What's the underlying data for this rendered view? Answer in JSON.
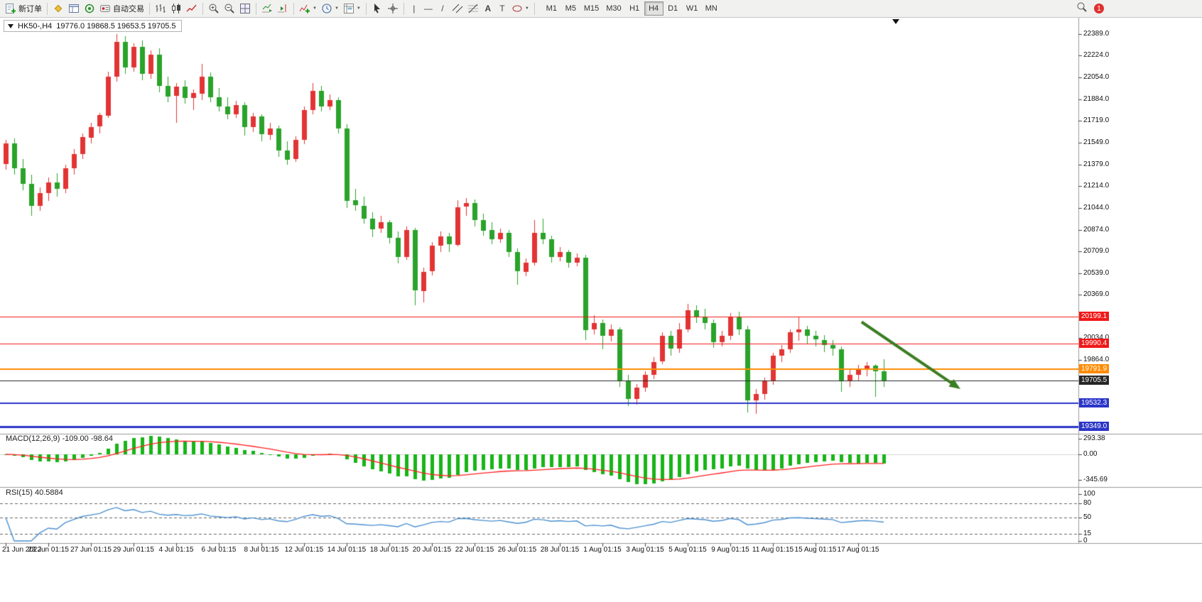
{
  "toolbar": {
    "new_order_label": "新订单",
    "autotrading_label": "自动交易",
    "timeframes": [
      "M1",
      "M5",
      "M15",
      "M30",
      "H1",
      "H4",
      "D1",
      "W1",
      "MN"
    ],
    "active_timeframe": "H4",
    "notification_count": "1"
  },
  "icons": {
    "caret": "▼",
    "vertical_line": "|",
    "horizontal_line": "—",
    "trendline": "/",
    "text_tool": "A",
    "label_tool": "T"
  },
  "chart": {
    "info": {
      "symbol_period": "HK50-,H4",
      "ohlc": "19776.0 19868.5 19653.5 19705.5"
    }
  },
  "chart_data": {
    "type": "candlestick",
    "symbol": "HK50-",
    "period": "H4",
    "ohlc_format": [
      "open",
      "high",
      "low",
      "close"
    ],
    "colors": {
      "up_color": "#e23434",
      "down_color": "#2aa32a",
      "background": "#ffffff"
    },
    "candles": [
      [
        21380,
        21570,
        21340,
        21540
      ],
      [
        21540,
        21580,
        21300,
        21350
      ],
      [
        21350,
        21420,
        21180,
        21230
      ],
      [
        21230,
        21300,
        20980,
        21060
      ],
      [
        21060,
        21200,
        21020,
        21160
      ],
      [
        21160,
        21280,
        21100,
        21240
      ],
      [
        21240,
        21310,
        21130,
        21190
      ],
      [
        21190,
        21380,
        21160,
        21350
      ],
      [
        21350,
        21500,
        21300,
        21460
      ],
      [
        21460,
        21620,
        21420,
        21590
      ],
      [
        21590,
        21700,
        21540,
        21670
      ],
      [
        21670,
        21780,
        21620,
        21760
      ],
      [
        21760,
        22100,
        21740,
        22060
      ],
      [
        22060,
        22389,
        22020,
        22330
      ],
      [
        22330,
        22370,
        22080,
        22130
      ],
      [
        22130,
        22320,
        22100,
        22290
      ],
      [
        22290,
        22340,
        22030,
        22080
      ],
      [
        22080,
        22260,
        22040,
        22230
      ],
      [
        22230,
        22280,
        21940,
        21990
      ],
      [
        21990,
        22060,
        21860,
        21910
      ],
      [
        21910,
        22010,
        21700,
        21980
      ],
      [
        21980,
        22030,
        21850,
        21890
      ],
      [
        21890,
        21960,
        21800,
        21930
      ],
      [
        21930,
        22160,
        21880,
        22060
      ],
      [
        22060,
        22090,
        21860,
        21900
      ],
      [
        21900,
        21970,
        21790,
        21830
      ],
      [
        21830,
        21900,
        21730,
        21770
      ],
      [
        21770,
        21870,
        21740,
        21840
      ],
      [
        21840,
        21860,
        21600,
        21670
      ],
      [
        21670,
        21780,
        21630,
        21750
      ],
      [
        21750,
        21770,
        21560,
        21610
      ],
      [
        21610,
        21700,
        21570,
        21660
      ],
      [
        21660,
        21680,
        21440,
        21490
      ],
      [
        21490,
        21560,
        21380,
        21420
      ],
      [
        21420,
        21600,
        21400,
        21570
      ],
      [
        21570,
        21830,
        21540,
        21800
      ],
      [
        21800,
        22010,
        21770,
        21950
      ],
      [
        21950,
        21990,
        21790,
        21830
      ],
      [
        21830,
        21920,
        21800,
        21880
      ],
      [
        21880,
        21900,
        21620,
        21660
      ],
      [
        21660,
        21690,
        21040,
        21100
      ],
      [
        21100,
        21190,
        21020,
        21060
      ],
      [
        21060,
        21130,
        20920,
        20960
      ],
      [
        20960,
        21010,
        20820,
        20880
      ],
      [
        20880,
        20980,
        20850,
        20930
      ],
      [
        20930,
        20950,
        20770,
        20810
      ],
      [
        20810,
        20860,
        20610,
        20660
      ],
      [
        20660,
        20900,
        20640,
        20870
      ],
      [
        20870,
        20890,
        20290,
        20400
      ],
      [
        20400,
        20580,
        20310,
        20550
      ],
      [
        20550,
        20780,
        20520,
        20750
      ],
      [
        20750,
        20860,
        20700,
        20820
      ],
      [
        20820,
        20850,
        20700,
        20760
      ],
      [
        20760,
        21100,
        20740,
        21050
      ],
      [
        21050,
        21120,
        20980,
        21080
      ],
      [
        21080,
        21110,
        20900,
        20950
      ],
      [
        20950,
        21000,
        20830,
        20870
      ],
      [
        20870,
        20930,
        20760,
        20800
      ],
      [
        20800,
        20880,
        20770,
        20850
      ],
      [
        20850,
        20870,
        20660,
        20700
      ],
      [
        20700,
        20730,
        20450,
        20550
      ],
      [
        20550,
        20650,
        20510,
        20620
      ],
      [
        20620,
        20950,
        20600,
        20850
      ],
      [
        20850,
        20960,
        20760,
        20800
      ],
      [
        20800,
        20830,
        20620,
        20660
      ],
      [
        20660,
        20740,
        20630,
        20700
      ],
      [
        20700,
        20720,
        20580,
        20620
      ],
      [
        20620,
        20690,
        20590,
        20660
      ],
      [
        20660,
        20680,
        20020,
        20100
      ],
      [
        20100,
        20210,
        20060,
        20150
      ],
      [
        20150,
        20180,
        19950,
        20050
      ],
      [
        20050,
        20140,
        20010,
        20100
      ],
      [
        20100,
        20120,
        19660,
        19700
      ],
      [
        19700,
        19750,
        19510,
        19560
      ],
      [
        19560,
        19680,
        19520,
        19650
      ],
      [
        19650,
        19780,
        19620,
        19750
      ],
      [
        19750,
        19890,
        19720,
        19850
      ],
      [
        19850,
        20080,
        19830,
        20050
      ],
      [
        20050,
        20090,
        19900,
        19950
      ],
      [
        19950,
        20150,
        19920,
        20100
      ],
      [
        20100,
        20300,
        20080,
        20250
      ],
      [
        20250,
        20290,
        20150,
        20200
      ],
      [
        20200,
        20260,
        20100,
        20150
      ],
      [
        20150,
        20180,
        19960,
        20000
      ],
      [
        20000,
        20090,
        19970,
        20050
      ],
      [
        20050,
        20230,
        20020,
        20200
      ],
      [
        20200,
        20240,
        20060,
        20100
      ],
      [
        20100,
        20130,
        19460,
        19550
      ],
      [
        19550,
        19640,
        19450,
        19600
      ],
      [
        19600,
        19730,
        19560,
        19700
      ],
      [
        19700,
        19920,
        19670,
        19900
      ],
      [
        19900,
        19980,
        19850,
        19950
      ],
      [
        19950,
        20100,
        19920,
        20080
      ],
      [
        20080,
        20199,
        20010,
        20100
      ],
      [
        20100,
        20130,
        19990,
        20050
      ],
      [
        20050,
        20090,
        19970,
        20020
      ],
      [
        20020,
        20060,
        19930,
        19980
      ],
      [
        19980,
        20020,
        19900,
        19950
      ],
      [
        19950,
        19970,
        19620,
        19700
      ],
      [
        19700,
        19790,
        19660,
        19750
      ],
      [
        19750,
        19830,
        19710,
        19800
      ],
      [
        19800,
        19850,
        19740,
        19820
      ],
      [
        19820,
        19835,
        19580,
        19776
      ],
      [
        19776,
        19868.5,
        19653.5,
        19705.5
      ]
    ],
    "price_axis": {
      "labels": [
        "22389.0",
        "22224.0",
        "22054.0",
        "21884.0",
        "21719.0",
        "21549.0",
        "21379.0",
        "21214.0",
        "21044.0",
        "20874.0",
        "20709.0",
        "20539.0",
        "20369.0",
        "20034.0",
        "19864.0"
      ],
      "top_value": 22389.0,
      "bottom_value": 19349.0
    },
    "hlines": [
      {
        "price": 20199.1,
        "label": "20199.1",
        "color": "#f01818",
        "width": 1
      },
      {
        "price": 19990.4,
        "label": "19990.4",
        "color": "#f01818",
        "width": 1
      },
      {
        "price": 19791.9,
        "label": "19791.9",
        "color": "#ff8c00",
        "width": 2
      },
      {
        "price": 19705.5,
        "label": "19705.5",
        "color": "#262626",
        "width": 1,
        "role": "current_price"
      },
      {
        "price": 19532.3,
        "label": "19532.3",
        "color": "#2b35c8",
        "width": 2
      },
      {
        "price": 19349.0,
        "label": "19349.0",
        "color": "#2b35c8",
        "width": 3
      }
    ],
    "current_price": 19705.5,
    "trend_arrow": {
      "from_bar": 100.4,
      "from_price": 20160,
      "to_bar": 112,
      "to_price": 19640,
      "color": "#3b7d23"
    },
    "time_axis_labels": [
      "21 Jun 2022",
      "23 Jun 01:15",
      "27 Jun 01:15",
      "29 Jun 01:15",
      "4 Jul 01:15",
      "6 Jul 01:15",
      "8 Jul 01:15",
      "12 Jul 01:15",
      "14 Jul 01:15",
      "18 Jul 01:15",
      "20 Jul 01:15",
      "22 Jul 01:15",
      "26 Jul 01:15",
      "28 Jul 01:15",
      "1 Aug 01:15",
      "3 Aug 01:15",
      "5 Aug 01:15",
      "9 Aug 01:15",
      "11 Aug 01:15",
      "15 Aug 01:15",
      "17 Aug 01:15"
    ],
    "bars_per_time_tick": 5,
    "indicators": {
      "macd": {
        "label": "MACD(12,26,9)",
        "values": "-109.00 -98.64",
        "params": [
          12,
          26,
          9
        ],
        "scale_labels": [
          "293.38",
          "0.00",
          "-345.69"
        ],
        "histogram_color": "#17b517",
        "signal_color": "#ff2222"
      },
      "rsi": {
        "label": "RSI(15)",
        "value": "40.5884",
        "period": 15,
        "levels": [
          80,
          50,
          15
        ],
        "scale_labels": [
          "100",
          "80",
          "50",
          "15",
          "0"
        ],
        "line_color": "#4a8fd0"
      }
    }
  }
}
